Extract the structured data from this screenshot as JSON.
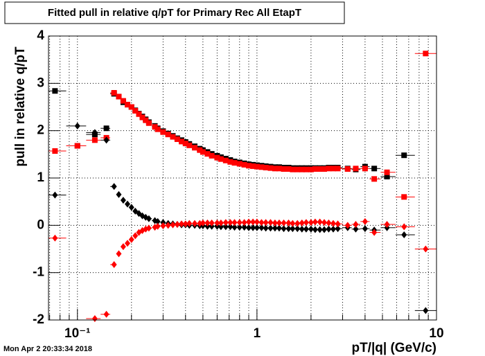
{
  "chart_data": {
    "type": "scatter",
    "title": "Fitted pull in relative q/pT for Primary Rec All EtapT",
    "y_label": "pull in relative q/pT",
    "x_label": "pT/|q| (GeV/c)",
    "timestamp": "Mon Apr  2 20:33:34 2018",
    "log_x": true,
    "grid": true,
    "xlim": [
      0.069,
      10
    ],
    "ylim": [
      -2,
      4
    ],
    "xticks": [
      {
        "value": 0.1,
        "label": "10⁻¹"
      },
      1,
      10
    ],
    "xminor": [
      0.07,
      0.08,
      0.09,
      0.2,
      0.3,
      0.4,
      0.5,
      0.6,
      0.7,
      0.8,
      0.9,
      2,
      3,
      4,
      5,
      6,
      7,
      8,
      9
    ],
    "yticks": [
      -2,
      -1,
      0,
      1,
      2,
      3,
      4
    ],
    "x": [
      0.075,
      0.1,
      0.125,
      0.145,
      0.16,
      0.17,
      0.18,
      0.19,
      0.2,
      0.21,
      0.22,
      0.23,
      0.24,
      0.25,
      0.27,
      0.28,
      0.3,
      0.32,
      0.34,
      0.36,
      0.38,
      0.4,
      0.42,
      0.45,
      0.48,
      0.5,
      0.53,
      0.56,
      0.6,
      0.63,
      0.67,
      0.71,
      0.75,
      0.8,
      0.85,
      0.9,
      0.95,
      1.0,
      1.06,
      1.12,
      1.19,
      1.26,
      1.33,
      1.41,
      1.5,
      1.58,
      1.68,
      1.78,
      1.88,
      2.0,
      2.11,
      2.24,
      2.37,
      2.51,
      2.66,
      2.82,
      3.2,
      3.55,
      4.0,
      4.5,
      5.3,
      6.6,
      8.7
    ],
    "series": [
      {
        "color": "#000000",
        "marker": "square",
        "values": [
          2.84,
          1.68,
          1.92,
          2.05,
          2.78,
          2.72,
          2.6,
          2.55,
          2.5,
          2.43,
          2.36,
          2.3,
          2.24,
          2.18,
          2.1,
          2.05,
          1.99,
          1.94,
          1.89,
          1.84,
          1.8,
          1.76,
          1.72,
          1.67,
          1.62,
          1.59,
          1.55,
          1.51,
          1.47,
          1.44,
          1.41,
          1.38,
          1.35,
          1.33,
          1.31,
          1.29,
          1.28,
          1.27,
          1.26,
          1.25,
          1.24,
          1.23,
          1.23,
          1.22,
          1.22,
          1.21,
          1.21,
          1.21,
          1.21,
          1.21,
          1.21,
          1.21,
          1.21,
          1.22,
          1.22,
          1.22,
          1.2,
          1.18,
          1.24,
          1.2,
          1.03,
          1.48,
          null
        ]
      },
      {
        "color": "#ff0000",
        "marker": "square",
        "values": [
          1.57,
          1.68,
          1.8,
          1.85,
          2.8,
          2.72,
          2.63,
          2.55,
          2.5,
          2.42,
          2.35,
          2.28,
          2.22,
          2.16,
          2.08,
          2.03,
          1.97,
          1.92,
          1.87,
          1.82,
          1.77,
          1.73,
          1.69,
          1.64,
          1.59,
          1.55,
          1.51,
          1.47,
          1.43,
          1.4,
          1.37,
          1.34,
          1.32,
          1.3,
          1.28,
          1.26,
          1.25,
          1.24,
          1.23,
          1.22,
          1.21,
          1.2,
          1.2,
          1.19,
          1.19,
          1.18,
          1.18,
          1.18,
          1.18,
          1.18,
          1.19,
          1.19,
          1.19,
          1.2,
          1.2,
          1.2,
          1.19,
          1.2,
          1.2,
          0.98,
          1.12,
          0.6,
          3.63
        ]
      },
      {
        "color": "#000000",
        "marker": "diamond",
        "values": [
          0.64,
          2.1,
          1.96,
          1.8,
          0.82,
          0.65,
          0.53,
          0.45,
          0.38,
          0.3,
          0.25,
          0.2,
          0.17,
          0.14,
          0.1,
          0.08,
          0.06,
          0.04,
          0.03,
          0.02,
          0.01,
          0.01,
          0,
          0,
          -0.01,
          -0.01,
          -0.02,
          -0.02,
          -0.02,
          -0.03,
          -0.03,
          -0.03,
          -0.04,
          -0.04,
          -0.04,
          -0.05,
          -0.05,
          -0.05,
          -0.05,
          -0.06,
          -0.06,
          -0.06,
          -0.06,
          -0.07,
          -0.07,
          -0.07,
          -0.07,
          -0.08,
          -0.08,
          -0.08,
          -0.09,
          -0.09,
          -0.09,
          -0.08,
          -0.08,
          -0.07,
          -0.05,
          -0.08,
          -0.07,
          -0.1,
          -0.05,
          -0.2,
          -1.8
        ]
      },
      {
        "color": "#ff0000",
        "marker": "diamond",
        "values": [
          -0.27,
          null,
          -1.97,
          -1.88,
          -0.83,
          -0.6,
          -0.45,
          -0.38,
          -0.3,
          -0.22,
          -0.15,
          -0.11,
          -0.08,
          -0.06,
          -0.04,
          -0.02,
          -0.01,
          0,
          0.01,
          0.02,
          0.03,
          0.03,
          0.04,
          0.04,
          0.04,
          0.05,
          0.05,
          0.05,
          0.05,
          0.05,
          0.06,
          0.06,
          0.06,
          0.06,
          0.06,
          0.07,
          0.07,
          0.07,
          0.06,
          0.06,
          0.06,
          0.05,
          0.05,
          0.05,
          0.05,
          0.04,
          0.04,
          0.05,
          0.06,
          0.06,
          0.07,
          0.07,
          0.06,
          0.05,
          0.04,
          0.03,
          0.0,
          0.02,
          0.08,
          -0.15,
          0.02,
          -0.03,
          -0.5
        ]
      }
    ]
  }
}
